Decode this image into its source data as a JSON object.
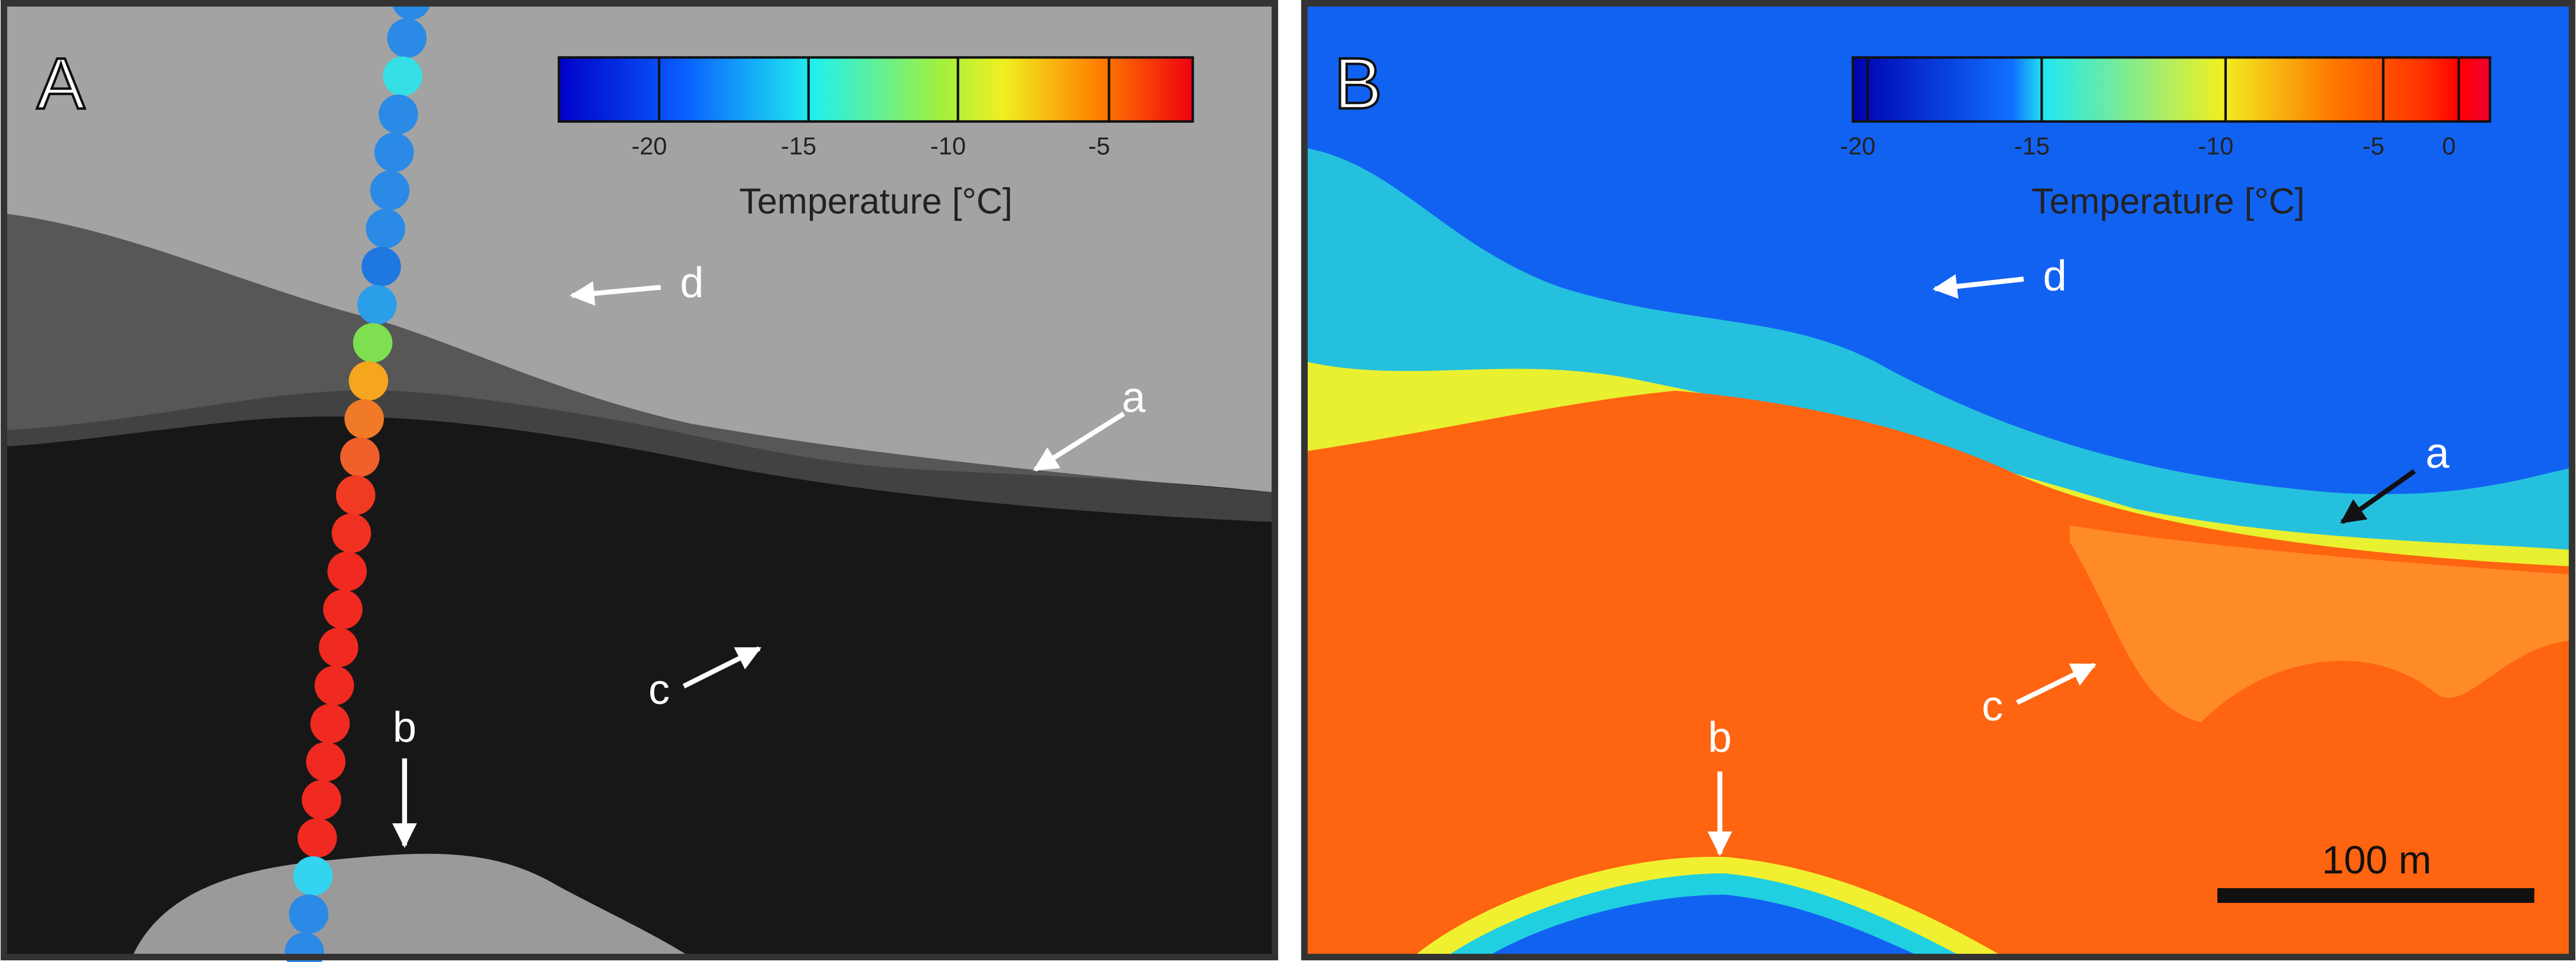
{
  "panel_a": {
    "label": "A",
    "colorbar": {
      "ticks": [
        -20,
        -15,
        -10,
        -5
      ],
      "title": "Temperature [°C]"
    },
    "annotations": [
      "a",
      "b",
      "c",
      "d"
    ]
  },
  "panel_b": {
    "label": "B",
    "colorbar": {
      "ticks": [
        -20,
        -15,
        -10,
        -5,
        0
      ],
      "title": "Temperature [°C]"
    },
    "annotations": [
      "a",
      "b",
      "c",
      "d"
    ],
    "scale_bar": "100 m"
  }
}
